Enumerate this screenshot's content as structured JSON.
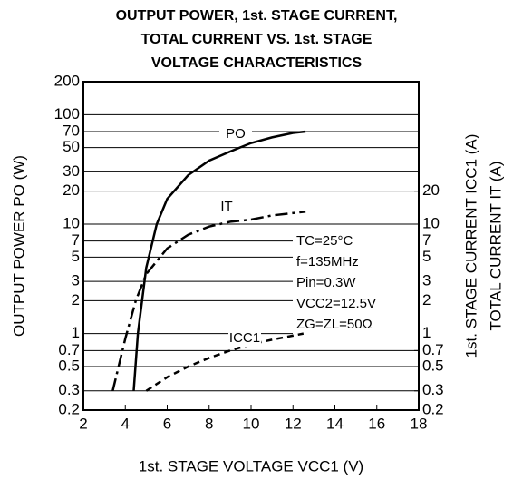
{
  "chart_data": {
    "type": "line",
    "title": [
      "OUTPUT POWER, 1st. STAGE CURRENT,",
      "TOTAL CURRENT VS. 1st. STAGE",
      "VOLTAGE CHARACTERISTICS"
    ],
    "x_label": "1st. STAGE VOLTAGE VCC1 (V)",
    "y_label": "OUTPUT POWER PO (W)",
    "y2_label": [
      "1st. STAGE CURRENT ICC1 (A)",
      "TOTAL CURRENT IT (A)"
    ],
    "xlim": [
      2,
      18
    ],
    "xticks": [
      2,
      4,
      6,
      8,
      10,
      12,
      14,
      16,
      18
    ],
    "ylim": [
      0.2,
      200
    ],
    "yticks": [
      0.2,
      0.3,
      0.5,
      0.7,
      1,
      2,
      3,
      5,
      7,
      10,
      20,
      30,
      50,
      70,
      100,
      200
    ],
    "y2lim": [
      0.2,
      200
    ],
    "y2ticks": [
      0.2,
      0.3,
      0.5,
      0.7,
      1,
      2,
      3,
      5,
      7,
      10,
      20
    ],
    "log_scale": true,
    "grid": true,
    "annotation": [
      "TC=25°C",
      "f=135MHz",
      "Pin=0.3W",
      "VCC2=12.5V",
      "ZG=ZL=50Ω"
    ],
    "series": [
      {
        "name": "PO",
        "color": "#000",
        "style": "solid",
        "x": [
          4.4,
          4.6,
          5,
          5.5,
          6,
          7,
          8,
          9,
          10,
          11,
          12,
          12.6
        ],
        "values": [
          0.3,
          1,
          4,
          10,
          17,
          28,
          38,
          46,
          55,
          62,
          68,
          70
        ]
      },
      {
        "name": "IT",
        "color": "#000",
        "style": "dashdot",
        "axis": "y2",
        "x": [
          3.4,
          4,
          4.5,
          5,
          6,
          7,
          8,
          9,
          10,
          11,
          12.6
        ],
        "values": [
          0.3,
          0.9,
          2,
          3.5,
          6,
          8,
          9.5,
          10.5,
          11,
          12,
          13
        ]
      },
      {
        "name": "ICC1",
        "color": "#000",
        "style": "dashed",
        "axis": "y2",
        "x": [
          5,
          6,
          7,
          8,
          9,
          10,
          11,
          12.5
        ],
        "values": [
          0.3,
          0.4,
          0.5,
          0.6,
          0.7,
          0.8,
          0.88,
          1
        ]
      }
    ]
  }
}
